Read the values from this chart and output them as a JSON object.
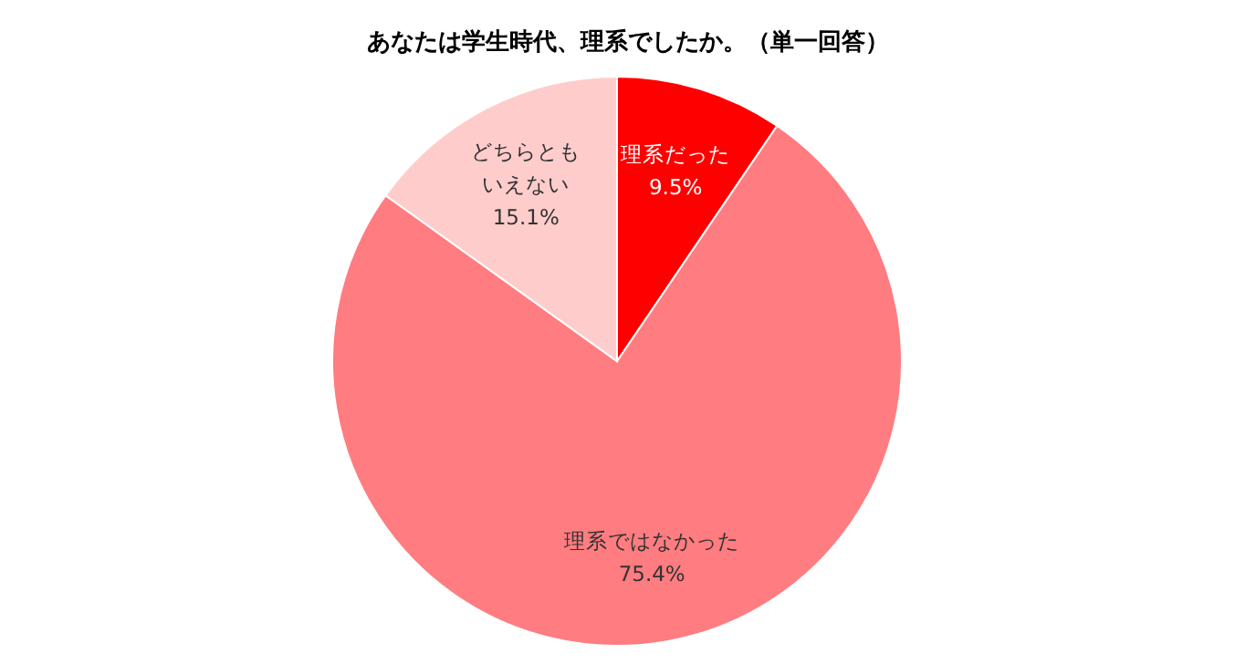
{
  "chart_data": {
    "type": "pie",
    "title": "あなたは学生時代、理系でしたか。（単一回答）",
    "categories": [
      "理系だった",
      "理系ではなかった",
      "どちらともいえない"
    ],
    "values": [
      9.5,
      75.4,
      15.1
    ],
    "colors": [
      "#ff0000",
      "#ff7c80",
      "#ffcccc"
    ],
    "value_labels": [
      "9.5%",
      "75.4%",
      "15.1%"
    ]
  }
}
